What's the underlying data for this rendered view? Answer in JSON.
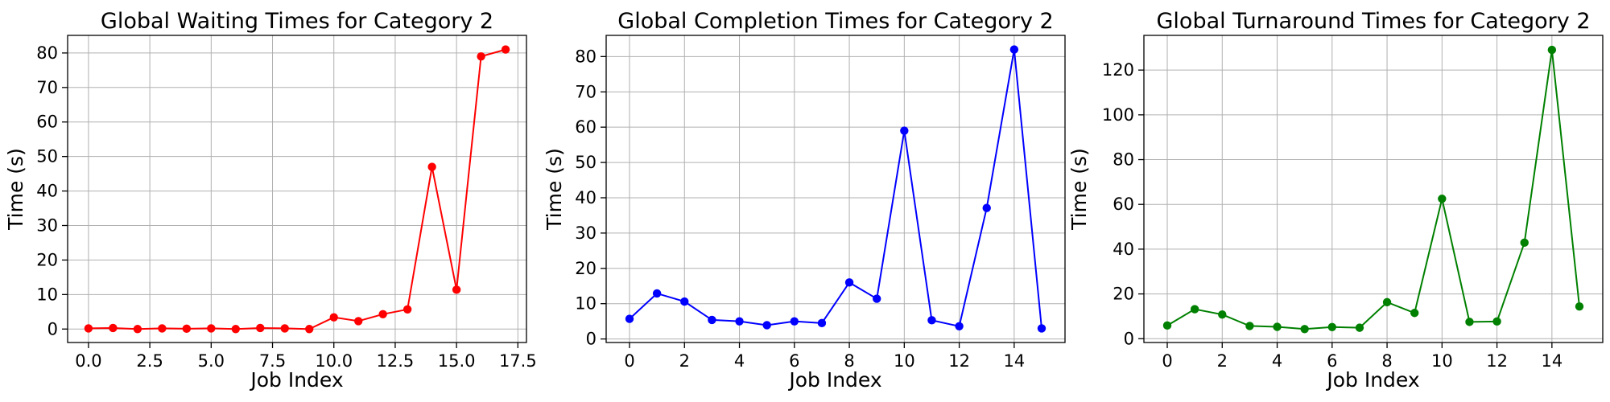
{
  "chart_data": [
    {
      "type": "line",
      "title": "Global Waiting Times for Category 2",
      "xlabel": "Job Index",
      "ylabel": "Time (s)",
      "color": "#ff0000",
      "grid": true,
      "xlim": [
        -0.85,
        17.85
      ],
      "ylim": [
        -3.9,
        85.1
      ],
      "xticks": [
        0.0,
        2.5,
        5.0,
        7.5,
        10.0,
        12.5,
        15.0,
        17.5
      ],
      "xtick_labels": [
        "0.0",
        "2.5",
        "5.0",
        "7.5",
        "10.0",
        "12.5",
        "15.0",
        "17.5"
      ],
      "yticks": [
        0,
        10,
        20,
        30,
        40,
        50,
        60,
        70,
        80
      ],
      "ytick_labels": [
        "0",
        "10",
        "20",
        "30",
        "40",
        "50",
        "60",
        "70",
        "80"
      ],
      "x": [
        0,
        1,
        2,
        3,
        4,
        5,
        6,
        7,
        8,
        9,
        10,
        11,
        12,
        13,
        14,
        15,
        16,
        17
      ],
      "y": [
        0.2,
        0.3,
        0.0,
        0.2,
        0.1,
        0.2,
        0.0,
        0.3,
        0.2,
        0.0,
        3.4,
        2.3,
        4.3,
        5.7,
        47.0,
        11.4,
        79.0,
        81.0
      ]
    },
    {
      "type": "line",
      "title": "Global Completion Times for Category 2",
      "xlabel": "Job Index",
      "ylabel": "Time (s)",
      "color": "#0000ff",
      "grid": true,
      "xlim": [
        -0.85,
        15.85
      ],
      "ylim": [
        -1.0,
        86.0
      ],
      "xticks": [
        0,
        2,
        4,
        6,
        8,
        10,
        12,
        14
      ],
      "xtick_labels": [
        "0",
        "2",
        "4",
        "6",
        "8",
        "10",
        "12",
        "14"
      ],
      "yticks": [
        0,
        10,
        20,
        30,
        40,
        50,
        60,
        70,
        80
      ],
      "ytick_labels": [
        "0",
        "10",
        "20",
        "30",
        "40",
        "50",
        "60",
        "70",
        "80"
      ],
      "x": [
        0,
        1,
        2,
        3,
        4,
        5,
        6,
        7,
        8,
        9,
        10,
        11,
        12,
        13,
        14,
        15
      ],
      "y": [
        5.7,
        12.9,
        10.6,
        5.4,
        5.0,
        3.9,
        5.0,
        4.5,
        16.0,
        11.4,
        59.0,
        5.3,
        3.6,
        37.1,
        82.0,
        3.0
      ]
    },
    {
      "type": "line",
      "title": "Global Turnaround Times for Category 2",
      "xlabel": "Job Index",
      "ylabel": "Time (s)",
      "color": "#008000",
      "grid": true,
      "xlim": [
        -0.85,
        15.85
      ],
      "ylim": [
        -1.7,
        135.5
      ],
      "xticks": [
        0,
        2,
        4,
        6,
        8,
        10,
        12,
        14
      ],
      "xtick_labels": [
        "0",
        "2",
        "4",
        "6",
        "8",
        "10",
        "12",
        "14"
      ],
      "yticks": [
        0,
        20,
        40,
        60,
        80,
        100,
        120
      ],
      "ytick_labels": [
        "0",
        "20",
        "40",
        "60",
        "80",
        "100",
        "120"
      ],
      "x": [
        0,
        1,
        2,
        3,
        4,
        5,
        6,
        7,
        8,
        9,
        10,
        11,
        12,
        13,
        14,
        15
      ],
      "y": [
        5.9,
        13.2,
        10.8,
        5.7,
        5.3,
        4.3,
        5.2,
        4.9,
        16.3,
        11.5,
        62.5,
        7.5,
        7.7,
        42.9,
        129.0,
        14.4
      ]
    }
  ]
}
